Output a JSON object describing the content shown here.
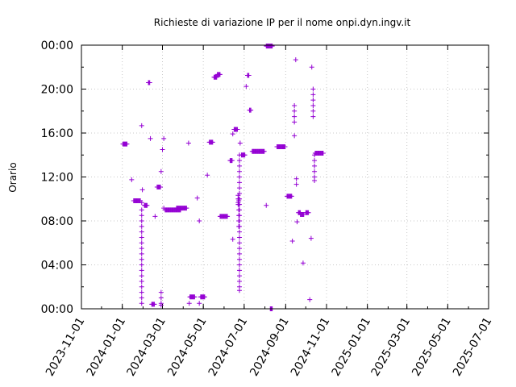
{
  "chart_data": {
    "type": "scatter",
    "title": "Richieste di variazione IP per il nome onpi.dyn.ingv.it",
    "ylabel": "Orario",
    "xlabel": "",
    "x_type": "date",
    "xlim": [
      "2023-11-01",
      "2025-07-01"
    ],
    "ylim": [
      "00:00",
      "24:00"
    ],
    "x_ticks": [
      "2023-11-01",
      "2024-01-01",
      "2024-03-01",
      "2024-05-01",
      "2024-07-01",
      "2024-09-01",
      "2024-11-01",
      "2025-01-01",
      "2025-03-01",
      "2025-05-01",
      "2025-07-01"
    ],
    "y_ticks": [
      "00:00",
      "04:00",
      "08:00",
      "12:00",
      "16:00",
      "20:00",
      "00:00"
    ],
    "grid": true,
    "legend": "none",
    "marker": "plus",
    "color": "#9400d3",
    "clusters": [
      {
        "from": "2024-01-02",
        "to": "2024-01-08",
        "times": [
          "15:00"
        ]
      },
      {
        "from": "2024-01-15",
        "to": "2024-01-15",
        "times": [
          "11:45"
        ]
      },
      {
        "from": "2024-01-18",
        "to": "2024-01-28",
        "times": [
          "09:50"
        ]
      },
      {
        "from": "2024-01-30",
        "to": "2024-01-30",
        "times": [
          "16:40",
          "09:40",
          "09:00",
          "08:30",
          "08:00",
          "07:30",
          "07:00",
          "06:30",
          "06:00",
          "05:30",
          "05:00",
          "04:30",
          "04:00",
          "03:30",
          "03:00",
          "02:30",
          "02:00",
          "01:30",
          "01:00",
          "00:30"
        ]
      },
      {
        "from": "2024-01-31",
        "to": "2024-01-31",
        "times": [
          "10:50"
        ]
      },
      {
        "from": "2024-02-03",
        "to": "2024-02-07",
        "times": [
          "09:25"
        ]
      },
      {
        "from": "2024-02-09",
        "to": "2024-02-11",
        "times": [
          "20:35"
        ]
      },
      {
        "from": "2024-02-12",
        "to": "2024-02-12",
        "times": [
          "15:30"
        ]
      },
      {
        "from": "2024-02-14",
        "to": "2024-02-18",
        "times": [
          "00:25"
        ]
      },
      {
        "from": "2024-02-19",
        "to": "2024-02-19",
        "times": [
          "08:25"
        ]
      },
      {
        "from": "2024-02-22",
        "to": "2024-02-27",
        "times": [
          "11:05"
        ]
      },
      {
        "from": "2024-02-28",
        "to": "2024-02-28",
        "times": [
          "12:30",
          "01:30",
          "01:00",
          "00:30",
          "00:20"
        ]
      },
      {
        "from": "2024-03-01",
        "to": "2024-03-01",
        "times": [
          "14:30"
        ]
      },
      {
        "from": "2024-03-03",
        "to": "2024-03-03",
        "times": [
          "15:30",
          "09:10"
        ]
      },
      {
        "from": "2024-03-05",
        "to": "2024-03-28",
        "times": [
          "09:00"
        ]
      },
      {
        "from": "2024-03-22",
        "to": "2024-04-06",
        "times": [
          "09:10"
        ]
      },
      {
        "from": "2024-04-09",
        "to": "2024-04-09",
        "times": [
          "15:05"
        ]
      },
      {
        "from": "2024-04-10",
        "to": "2024-04-10",
        "times": [
          "00:30"
        ]
      },
      {
        "from": "2024-04-11",
        "to": "2024-04-18",
        "times": [
          "01:05"
        ]
      },
      {
        "from": "2024-04-22",
        "to": "2024-04-22",
        "times": [
          "10:05"
        ]
      },
      {
        "from": "2024-04-25",
        "to": "2024-04-25",
        "times": [
          "00:30",
          "08:00"
        ]
      },
      {
        "from": "2024-04-27",
        "to": "2024-05-03",
        "times": [
          "01:05"
        ]
      },
      {
        "from": "2024-05-07",
        "to": "2024-05-07",
        "times": [
          "12:10"
        ]
      },
      {
        "from": "2024-05-10",
        "to": "2024-05-15",
        "times": [
          "15:10"
        ]
      },
      {
        "from": "2024-05-17",
        "to": "2024-05-21",
        "times": [
          "21:05"
        ]
      },
      {
        "from": "2024-05-22",
        "to": "2024-05-26",
        "times": [
          "21:20"
        ]
      },
      {
        "from": "2024-05-26",
        "to": "2024-06-06",
        "times": [
          "08:25"
        ]
      },
      {
        "from": "2024-06-10",
        "to": "2024-06-13",
        "times": [
          "13:30"
        ]
      },
      {
        "from": "2024-06-14",
        "to": "2024-06-14",
        "times": [
          "06:20"
        ]
      },
      {
        "from": "2024-06-14",
        "to": "2024-06-14",
        "times": [
          "15:55"
        ]
      },
      {
        "from": "2024-06-16",
        "to": "2024-06-21",
        "times": [
          "16:20"
        ]
      },
      {
        "from": "2024-06-22",
        "to": "2024-06-22",
        "times": [
          "09:30",
          "09:40",
          "10:00",
          "10:20"
        ]
      },
      {
        "from": "2024-06-23",
        "to": "2024-06-23",
        "times": [
          "10:00",
          "09:50",
          "09:30",
          "09:00",
          "08:30",
          "08:00",
          "07:30"
        ]
      },
      {
        "from": "2024-06-24",
        "to": "2024-06-24",
        "times": [
          "14:00",
          "13:30",
          "13:00",
          "12:30",
          "12:00",
          "11:30",
          "11:00",
          "10:30",
          "10:00",
          "09:30",
          "09:00",
          "08:30",
          "08:00",
          "07:30",
          "07:00",
          "06:30",
          "06:00",
          "05:30",
          "05:00",
          "04:30",
          "04:00",
          "03:30",
          "03:00",
          "02:30",
          "02:00",
          "01:40"
        ]
      },
      {
        "from": "2024-06-25",
        "to": "2024-06-25",
        "times": [
          "15:05"
        ]
      },
      {
        "from": "2024-06-27",
        "to": "2024-07-02",
        "times": [
          "14:00"
        ]
      },
      {
        "from": "2024-07-04",
        "to": "2024-07-04",
        "times": [
          "20:15"
        ]
      },
      {
        "from": "2024-07-06",
        "to": "2024-07-08",
        "times": [
          "21:15"
        ]
      },
      {
        "from": "2024-07-09",
        "to": "2024-07-11",
        "times": [
          "18:05"
        ]
      },
      {
        "from": "2024-07-13",
        "to": "2024-07-31",
        "times": [
          "14:20"
        ]
      },
      {
        "from": "2024-08-03",
        "to": "2024-08-03",
        "times": [
          "09:25"
        ]
      },
      {
        "from": "2024-08-03",
        "to": "2024-08-12",
        "times": [
          "23:55"
        ]
      },
      {
        "from": "2024-08-09",
        "to": "2024-08-12",
        "times": [
          "00:00"
        ]
      },
      {
        "from": "2024-08-19",
        "to": "2024-08-31",
        "times": [
          "14:45"
        ]
      },
      {
        "from": "2024-09-03",
        "to": "2024-09-10",
        "times": [
          "10:15"
        ]
      },
      {
        "from": "2024-09-11",
        "to": "2024-09-11",
        "times": [
          "06:10"
        ]
      },
      {
        "from": "2024-09-14",
        "to": "2024-09-14",
        "times": [
          "15:45"
        ]
      },
      {
        "from": "2024-09-14",
        "to": "2024-09-14",
        "times": [
          "18:30",
          "18:00",
          "17:30",
          "17:00"
        ]
      },
      {
        "from": "2024-09-16",
        "to": "2024-09-16",
        "times": [
          "22:40"
        ]
      },
      {
        "from": "2024-09-17",
        "to": "2024-09-17",
        "times": [
          "11:50",
          "11:20"
        ]
      },
      {
        "from": "2024-09-18",
        "to": "2024-09-18",
        "times": [
          "07:55"
        ]
      },
      {
        "from": "2024-09-20",
        "to": "2024-09-23",
        "times": [
          "08:45"
        ]
      },
      {
        "from": "2024-09-23",
        "to": "2024-09-28",
        "times": [
          "08:35"
        ]
      },
      {
        "from": "2024-09-27",
        "to": "2024-09-27",
        "times": [
          "04:10"
        ]
      },
      {
        "from": "2024-10-01",
        "to": "2024-10-05",
        "times": [
          "08:45"
        ]
      },
      {
        "from": "2024-10-07",
        "to": "2024-10-07",
        "times": [
          "00:50"
        ]
      },
      {
        "from": "2024-10-09",
        "to": "2024-10-09",
        "times": [
          "06:25"
        ]
      },
      {
        "from": "2024-10-10",
        "to": "2024-10-10",
        "times": [
          "22:00"
        ]
      },
      {
        "from": "2024-10-12",
        "to": "2024-10-12",
        "times": [
          "20:00",
          "19:30",
          "19:00",
          "18:30",
          "18:00",
          "17:30"
        ]
      },
      {
        "from": "2024-10-14",
        "to": "2024-10-14",
        "times": [
          "14:00",
          "13:30",
          "13:00",
          "12:30",
          "12:00",
          "11:40"
        ]
      },
      {
        "from": "2024-10-15",
        "to": "2024-10-27",
        "times": [
          "14:10"
        ]
      }
    ]
  }
}
